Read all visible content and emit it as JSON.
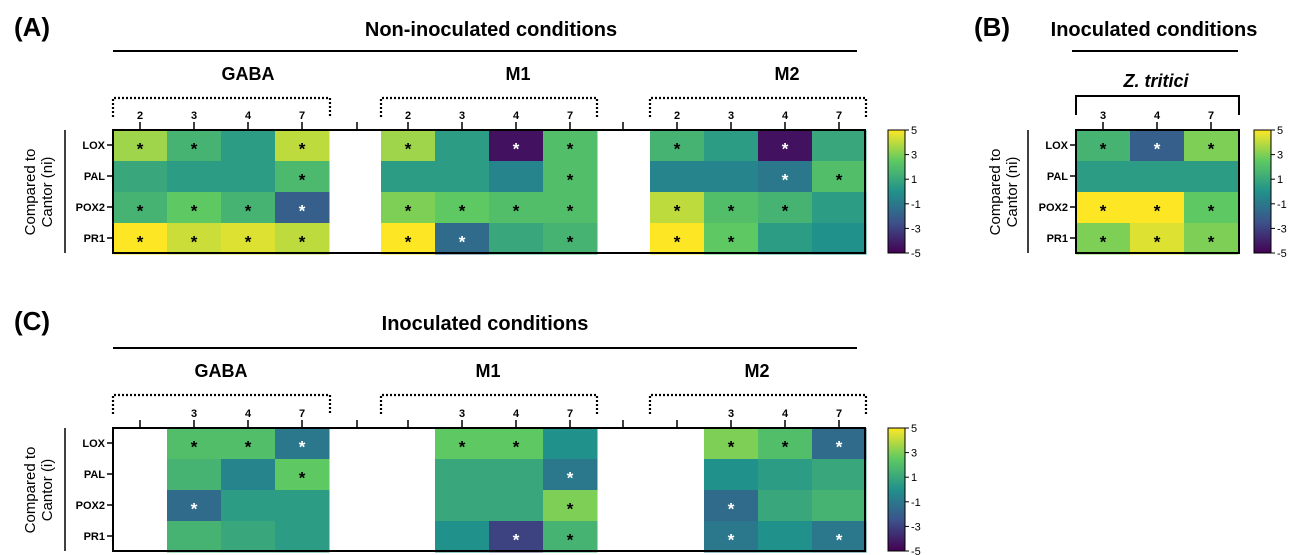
{
  "palette": [
    "#440154",
    "#3b528b",
    "#21918c",
    "#5ec962",
    "#fde725"
  ],
  "panels": [
    {
      "id": "A",
      "letter": "(A)",
      "header": "Non-inoculated conditions",
      "y_label_lines": [
        "Compared to",
        "Cantor (ni)"
      ],
      "colorbar_ticks": [
        "5",
        "3",
        "1",
        "-1",
        "-3",
        "-5"
      ]
    },
    {
      "id": "B",
      "letter": "(B)",
      "header": "Inoculated conditions",
      "subheader": "Z. tritici",
      "y_label_lines": [
        "Compared to",
        "Cantor (ni)"
      ],
      "colorbar_ticks": [
        "5",
        "3",
        "1",
        "-1",
        "-3",
        "-5"
      ]
    },
    {
      "id": "C",
      "letter": "(C)",
      "header": "Inoculated conditions",
      "y_label_lines": [
        "Compared to",
        "Cantor (i)"
      ],
      "colorbar_ticks": [
        "5",
        "3",
        "1",
        "-1",
        "-3",
        "-5"
      ]
    }
  ],
  "chart_data": [
    {
      "type": "heatmap",
      "panel": "A",
      "rows": [
        "LOX",
        "PAL",
        "POX2",
        "PR1"
      ],
      "color_range": [
        -5,
        5
      ],
      "groups": [
        {
          "name": "GABA",
          "columns": [
            "2",
            "3",
            "4",
            "7"
          ],
          "values": [
            [
              3.5,
              1.5,
              0.5,
              4.0
            ],
            [
              1.0,
              0.5,
              0.5,
              1.8
            ],
            [
              1.5,
              2.5,
              1.5,
              -2.0
            ],
            [
              5.0,
              4.2,
              4.5,
              4.0
            ]
          ],
          "significant": [
            [
              true,
              true,
              false,
              true
            ],
            [
              false,
              false,
              false,
              true
            ],
            [
              true,
              true,
              true,
              true
            ],
            [
              true,
              true,
              true,
              true
            ]
          ]
        },
        {
          "name": "M1",
          "columns": [
            "2",
            "3",
            "4",
            "7"
          ],
          "values": [
            [
              3.5,
              0.5,
              -4.5,
              2.0
            ],
            [
              0.5,
              0.5,
              -0.5,
              2.0
            ],
            [
              3.0,
              2.5,
              2.0,
              2.0
            ],
            [
              5.0,
              -1.5,
              1.0,
              1.5
            ]
          ],
          "significant": [
            [
              true,
              false,
              true,
              true
            ],
            [
              false,
              false,
              false,
              true
            ],
            [
              true,
              true,
              true,
              true
            ],
            [
              true,
              true,
              false,
              true
            ]
          ]
        },
        {
          "name": "M2",
          "columns": [
            "2",
            "3",
            "4",
            "7"
          ],
          "values": [
            [
              1.5,
              0.5,
              -4.5,
              1.0
            ],
            [
              -0.5,
              -0.5,
              -1.0,
              2.0
            ],
            [
              4.0,
              2.0,
              1.5,
              0.5
            ],
            [
              5.0,
              2.5,
              0.5,
              0.0
            ]
          ],
          "significant": [
            [
              true,
              false,
              true,
              false
            ],
            [
              false,
              false,
              true,
              true
            ],
            [
              true,
              true,
              true,
              false
            ],
            [
              true,
              true,
              false,
              false
            ]
          ]
        }
      ]
    },
    {
      "type": "heatmap",
      "panel": "B",
      "rows": [
        "LOX",
        "PAL",
        "POX2",
        "PR1"
      ],
      "color_range": [
        -5,
        5
      ],
      "groups": [
        {
          "name": "Z. tritici",
          "columns": [
            "3",
            "4",
            "7"
          ],
          "values": [
            [
              1.5,
              -2.0,
              3.0
            ],
            [
              0.5,
              0.5,
              0.5
            ],
            [
              5.0,
              5.0,
              2.5
            ],
            [
              3.0,
              4.5,
              3.0
            ]
          ],
          "significant": [
            [
              true,
              true,
              true
            ],
            [
              false,
              false,
              false
            ],
            [
              true,
              true,
              true
            ],
            [
              true,
              true,
              true
            ]
          ]
        }
      ]
    },
    {
      "type": "heatmap",
      "panel": "C",
      "rows": [
        "LOX",
        "PAL",
        "POX2",
        "PR1"
      ],
      "color_range": [
        -5,
        5
      ],
      "groups": [
        {
          "name": "GABA",
          "columns": [
            "",
            "3",
            "4",
            "7"
          ],
          "values": [
            [
              null,
              2.0,
              2.0,
              -1.0
            ],
            [
              null,
              1.5,
              -0.5,
              2.5
            ],
            [
              null,
              -1.5,
              0.5,
              0.5
            ],
            [
              null,
              1.5,
              1.0,
              0.5
            ]
          ],
          "significant": [
            [
              false,
              true,
              true,
              true
            ],
            [
              false,
              false,
              false,
              true
            ],
            [
              false,
              true,
              false,
              false
            ],
            [
              false,
              false,
              false,
              false
            ]
          ]
        },
        {
          "name": "M1",
          "columns": [
            "",
            "3",
            "4",
            "7"
          ],
          "values": [
            [
              null,
              2.5,
              2.5,
              0.0
            ],
            [
              null,
              1.0,
              1.0,
              -1.0
            ],
            [
              null,
              1.0,
              1.0,
              3.0
            ],
            [
              null,
              0.0,
              -3.0,
              1.5
            ]
          ],
          "significant": [
            [
              false,
              true,
              true,
              false
            ],
            [
              false,
              false,
              false,
              true
            ],
            [
              false,
              false,
              false,
              true
            ],
            [
              false,
              false,
              true,
              true
            ]
          ]
        },
        {
          "name": "M2",
          "columns": [
            "",
            "3",
            "4",
            "7"
          ],
          "values": [
            [
              null,
              3.0,
              2.0,
              -1.5
            ],
            [
              null,
              0.0,
              0.5,
              1.0
            ],
            [
              null,
              -1.5,
              1.0,
              1.5
            ],
            [
              null,
              -1.0,
              0.0,
              -1.0
            ]
          ],
          "significant": [
            [
              false,
              true,
              true,
              true
            ],
            [
              false,
              false,
              false,
              false
            ],
            [
              false,
              true,
              false,
              false
            ],
            [
              false,
              true,
              false,
              true
            ]
          ]
        }
      ]
    }
  ]
}
